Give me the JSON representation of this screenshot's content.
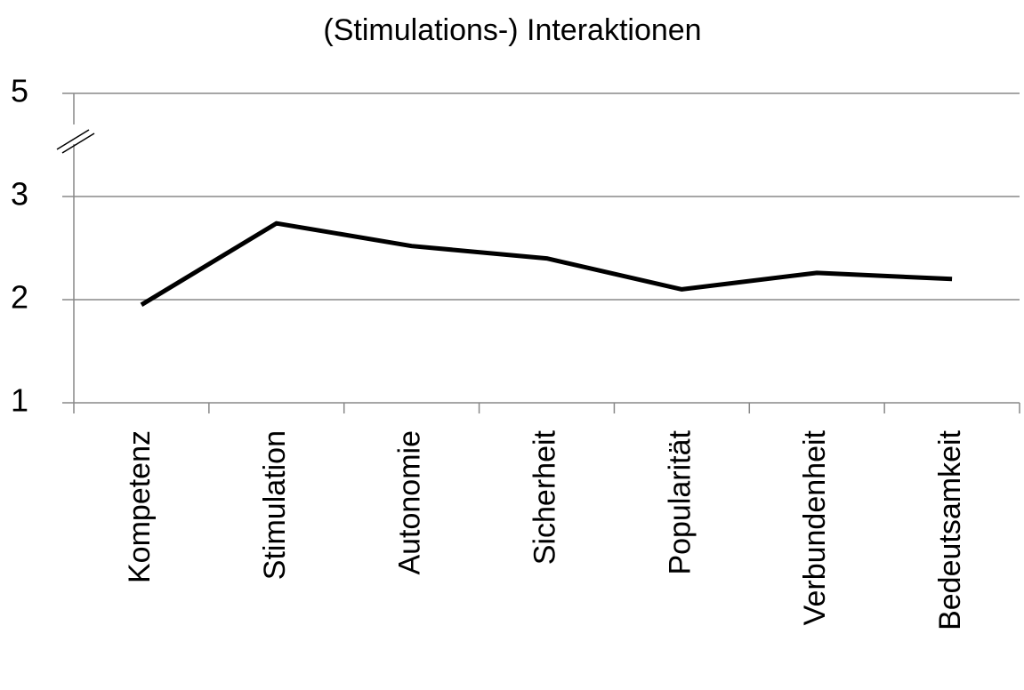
{
  "chart_data": {
    "type": "line",
    "title": "(Stimulations-) Interaktionen",
    "categories": [
      "Kompetenz",
      "Stimulation",
      "Autonomie",
      "Sicherheit",
      "Popularität",
      "Verbundenheit",
      "Bedeutsamkeit"
    ],
    "series": [
      {
        "name": "Interaktionen",
        "color": "#000000",
        "values": [
          1.95,
          2.74,
          2.52,
          2.4,
          2.1,
          2.26,
          2.2
        ]
      }
    ],
    "ylim": [
      1,
      5
    ],
    "yticks": [
      1,
      2,
      3,
      5
    ],
    "axis_break": [
      3,
      5
    ],
    "grid": true
  }
}
